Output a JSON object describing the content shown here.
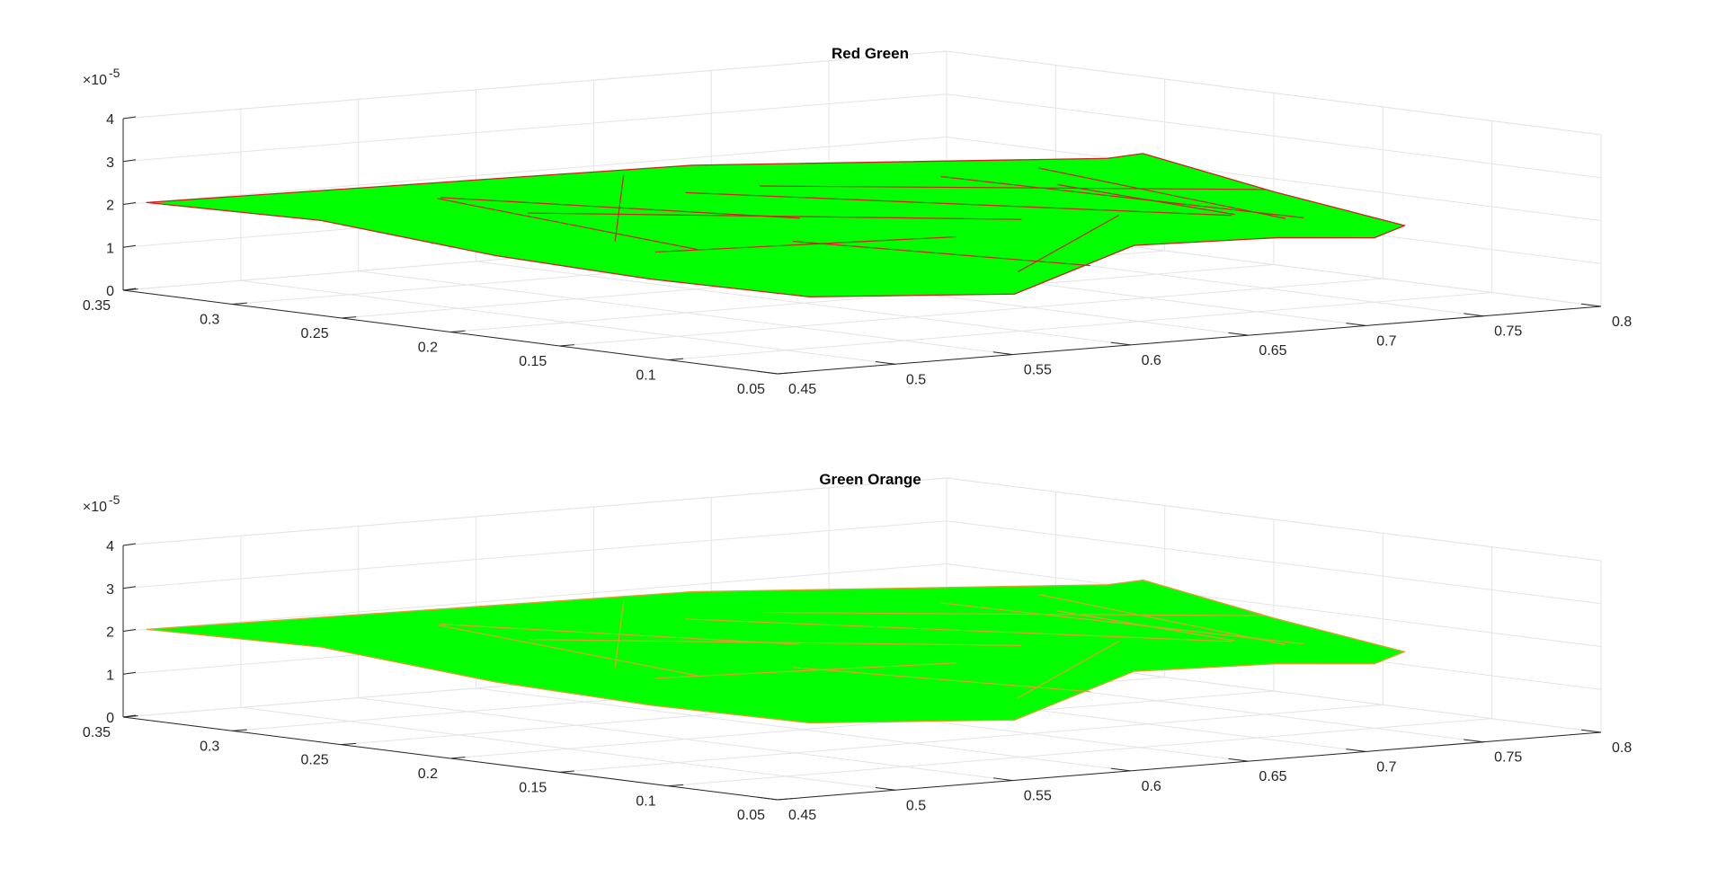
{
  "chart_data": [
    {
      "type": "surface",
      "title": "Red Green",
      "xlabel": "",
      "ylabel": "",
      "zlabel": "",
      "xlim": [
        0.05,
        0.35
      ],
      "ylim": [
        0.45,
        0.8
      ],
      "zlim": [
        0,
        4e-05
      ],
      "x_ticks": [
        "0.35",
        "0.3",
        "0.25",
        "0.2",
        "0.15",
        "0.1",
        "0.05"
      ],
      "y_ticks": [
        "0.45",
        "0.5",
        "0.55",
        "0.6",
        "0.65",
        "0.7",
        "0.75",
        "0.8"
      ],
      "z_ticks": [
        "0",
        "1",
        "2",
        "3",
        "4"
      ],
      "z_exponent_base": "×10",
      "z_exponent": "-5",
      "grid": true,
      "face_color": "#00ff00",
      "edge_color": "#d22020",
      "surface_z": 2e-05,
      "outline": [
        [
          0.35,
          0.46,
          2e-05
        ],
        [
          0.24,
          0.59,
          3e-05
        ],
        [
          0.19,
          0.72,
          2.9e-05
        ],
        [
          0.26,
          0.8,
          2.2e-05
        ],
        [
          0.2,
          0.8,
          1.7e-05
        ],
        [
          0.14,
          0.8,
          1.3e-05
        ],
        [
          0.1,
          0.75,
          1.5e-05
        ],
        [
          0.08,
          0.69,
          1.9e-05
        ],
        [
          0.07,
          0.62,
          2.1e-05
        ],
        [
          0.06,
          0.56,
          1.3e-05
        ],
        [
          0.1,
          0.51,
          1.2e-05
        ],
        [
          0.13,
          0.47,
          1.6e-05
        ],
        [
          0.19,
          0.46,
          1.8e-05
        ],
        [
          0.27,
          0.46,
          2.1e-05
        ]
      ],
      "mesh_lines": [
        [
          [
            0.26,
            0.5,
            2.5e-05
          ],
          [
            0.13,
            0.49,
            2.2e-05
          ]
        ],
        [
          [
            0.24,
            0.52,
            2.2e-05
          ],
          [
            0.1,
            0.6,
            2.6e-05
          ]
        ],
        [
          [
            0.2,
            0.55,
            2.8e-05
          ],
          [
            0.09,
            0.68,
            2.4e-05
          ]
        ],
        [
          [
            0.22,
            0.6,
            2.6e-05
          ],
          [
            0.15,
            0.75,
            2.3e-05
          ]
        ],
        [
          [
            0.18,
            0.64,
            2.9e-05
          ],
          [
            0.1,
            0.72,
            2.1e-05
          ]
        ],
        [
          [
            0.16,
            0.5,
            1.9e-05
          ],
          [
            0.13,
            0.6,
            2e-05
          ]
        ],
        [
          [
            0.14,
            0.54,
            2.1e-05
          ],
          [
            0.09,
            0.62,
            1.5e-05
          ]
        ],
        [
          [
            0.2,
            0.7,
            2.7e-05
          ],
          [
            0.13,
            0.74,
            1.8e-05
          ]
        ],
        [
          [
            0.28,
            0.52,
            2.3e-05
          ],
          [
            0.18,
            0.58,
            2.2e-05
          ]
        ],
        [
          [
            0.12,
            0.66,
            2.3e-05
          ],
          [
            0.08,
            0.58,
            1.6e-05
          ]
        ],
        [
          [
            0.25,
            0.57,
            2.8e-05
          ],
          [
            0.2,
            0.52,
            1.8e-05
          ]
        ],
        [
          [
            0.17,
            0.68,
            2.6e-05
          ],
          [
            0.11,
            0.7,
            2.2e-05
          ]
        ]
      ]
    },
    {
      "type": "surface",
      "title": "Green Orange",
      "xlabel": "",
      "ylabel": "",
      "zlabel": "",
      "xlim": [
        0.05,
        0.35
      ],
      "ylim": [
        0.45,
        0.8
      ],
      "zlim": [
        0,
        4e-05
      ],
      "x_ticks": [
        "0.35",
        "0.3",
        "0.25",
        "0.2",
        "0.15",
        "0.1",
        "0.05"
      ],
      "y_ticks": [
        "0.45",
        "0.5",
        "0.55",
        "0.6",
        "0.65",
        "0.7",
        "0.75",
        "0.8"
      ],
      "z_ticks": [
        "0",
        "1",
        "2",
        "3",
        "4"
      ],
      "z_exponent_base": "×10",
      "z_exponent": "-5",
      "grid": true,
      "face_color": "#00ff00",
      "edge_color": "#e0a030",
      "surface_z": 2e-05,
      "outline": [
        [
          0.35,
          0.46,
          2e-05
        ],
        [
          0.24,
          0.59,
          3e-05
        ],
        [
          0.19,
          0.72,
          2.9e-05
        ],
        [
          0.26,
          0.8,
          2.2e-05
        ],
        [
          0.2,
          0.8,
          1.7e-05
        ],
        [
          0.14,
          0.8,
          1.3e-05
        ],
        [
          0.1,
          0.75,
          1.5e-05
        ],
        [
          0.08,
          0.69,
          1.9e-05
        ],
        [
          0.07,
          0.62,
          2.1e-05
        ],
        [
          0.06,
          0.56,
          1.3e-05
        ],
        [
          0.1,
          0.51,
          1.2e-05
        ],
        [
          0.13,
          0.47,
          1.6e-05
        ],
        [
          0.19,
          0.46,
          1.8e-05
        ],
        [
          0.27,
          0.46,
          2.1e-05
        ]
      ],
      "mesh_lines": [
        [
          [
            0.26,
            0.5,
            2.5e-05
          ],
          [
            0.13,
            0.49,
            2.2e-05
          ]
        ],
        [
          [
            0.24,
            0.52,
            2.2e-05
          ],
          [
            0.1,
            0.6,
            2.6e-05
          ]
        ],
        [
          [
            0.2,
            0.55,
            2.8e-05
          ],
          [
            0.09,
            0.68,
            2.4e-05
          ]
        ],
        [
          [
            0.22,
            0.6,
            2.6e-05
          ],
          [
            0.15,
            0.75,
            2.3e-05
          ]
        ],
        [
          [
            0.18,
            0.64,
            2.9e-05
          ],
          [
            0.1,
            0.72,
            2.1e-05
          ]
        ],
        [
          [
            0.16,
            0.5,
            1.9e-05
          ],
          [
            0.13,
            0.6,
            2e-05
          ]
        ],
        [
          [
            0.14,
            0.54,
            2.1e-05
          ],
          [
            0.09,
            0.62,
            1.5e-05
          ]
        ],
        [
          [
            0.2,
            0.7,
            2.7e-05
          ],
          [
            0.13,
            0.74,
            1.8e-05
          ]
        ],
        [
          [
            0.28,
            0.52,
            2.3e-05
          ],
          [
            0.18,
            0.58,
            2.2e-05
          ]
        ],
        [
          [
            0.12,
            0.66,
            2.3e-05
          ],
          [
            0.08,
            0.58,
            1.6e-05
          ]
        ],
        [
          [
            0.25,
            0.57,
            2.8e-05
          ],
          [
            0.2,
            0.52,
            1.8e-05
          ]
        ],
        [
          [
            0.17,
            0.68,
            2.6e-05
          ],
          [
            0.11,
            0.7,
            2.2e-05
          ]
        ]
      ]
    }
  ]
}
